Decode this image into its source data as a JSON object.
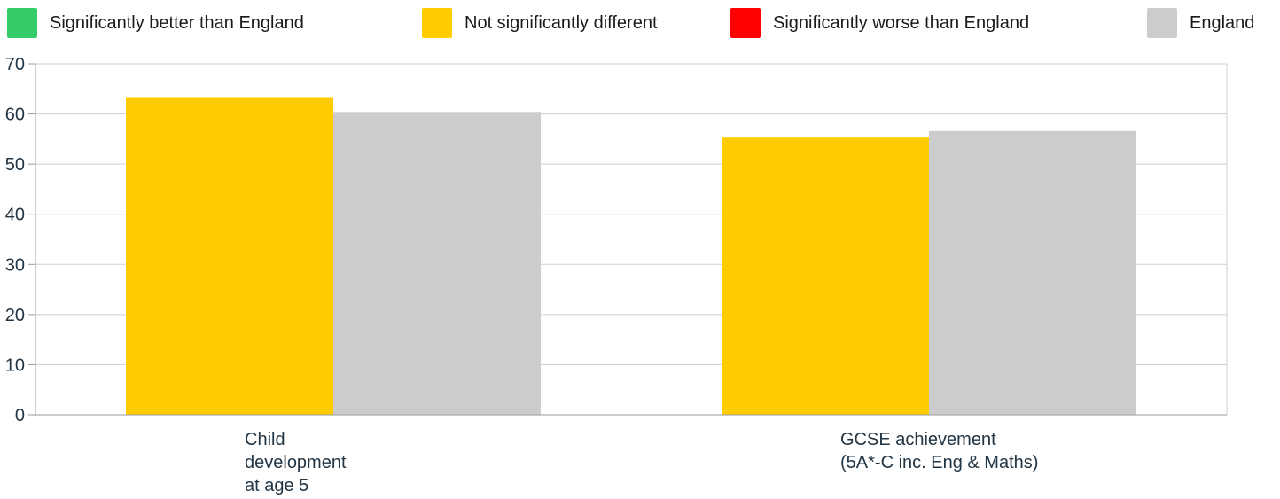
{
  "legend": [
    {
      "label": "Significantly better than England",
      "color": "#33cc66"
    },
    {
      "label": "Not significantly different",
      "color": "#ffcc00"
    },
    {
      "label": "Significantly worse than England",
      "color": "#ff0000"
    },
    {
      "label": "England",
      "color": "#cccccc"
    }
  ],
  "chart_data": {
    "type": "bar",
    "categories": [
      [
        "Child",
        "development",
        "at age 5"
      ],
      [
        "GCSE achievement",
        "(5A*-C inc. Eng & Maths)"
      ]
    ],
    "series": [
      {
        "values": [
          63.2,
          55.3
        ],
        "color": "#ffcc00"
      },
      {
        "name": "England",
        "values": [
          60.4,
          56.6
        ],
        "color": "#cccccc"
      }
    ],
    "ylim": [
      0,
      70
    ],
    "yticks": [
      0,
      10,
      20,
      30,
      40,
      50,
      60,
      70
    ],
    "grid": true,
    "legend_position": "top"
  }
}
